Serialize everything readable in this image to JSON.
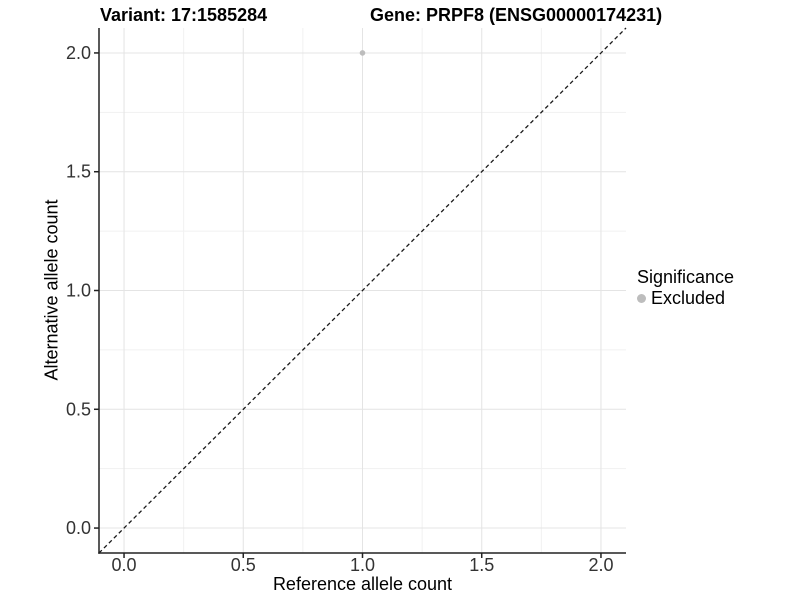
{
  "chart_data": {
    "type": "scatter",
    "title_left": "Variant: 17:1585284",
    "title_right": "Gene: PRPF8 (ENSG00000174231)",
    "xlabel": "Reference allele count",
    "ylabel": "Alternative allele count",
    "xlim": [
      -0.105,
      2.105
    ],
    "ylim": [
      -0.105,
      2.105
    ],
    "x_ticks": [
      {
        "v": 0.0,
        "label": "0.0"
      },
      {
        "v": 0.5,
        "label": "0.5"
      },
      {
        "v": 1.0,
        "label": "1.0"
      },
      {
        "v": 1.5,
        "label": "1.5"
      },
      {
        "v": 2.0,
        "label": "2.0"
      }
    ],
    "y_ticks": [
      {
        "v": 0.0,
        "label": "0.0"
      },
      {
        "v": 0.5,
        "label": "0.5"
      },
      {
        "v": 1.0,
        "label": "1.0"
      },
      {
        "v": 1.5,
        "label": "1.5"
      },
      {
        "v": 2.0,
        "label": "2.0"
      }
    ],
    "x_minor": [
      0.25,
      0.75,
      1.25,
      1.75
    ],
    "y_minor": [
      0.25,
      0.75,
      1.25,
      1.75
    ],
    "grid": "on",
    "points": [
      {
        "x": 1.0,
        "y": 2.0,
        "series": "Excluded"
      }
    ],
    "reference_line": {
      "slope": 1,
      "intercept": 0,
      "linetype": "dashed"
    },
    "legend": {
      "title": "Significance",
      "position": "right",
      "items": [
        {
          "label": "Excluded",
          "color": "#bdbdbd",
          "marker": "circle"
        }
      ]
    },
    "colors": {
      "point": "#bdbdbd",
      "grid_major": "#e4e4e4",
      "grid_minor": "#f1f1f1",
      "axis": "#222222",
      "reference_line": "#1a1a1a",
      "background": "#ffffff"
    }
  }
}
